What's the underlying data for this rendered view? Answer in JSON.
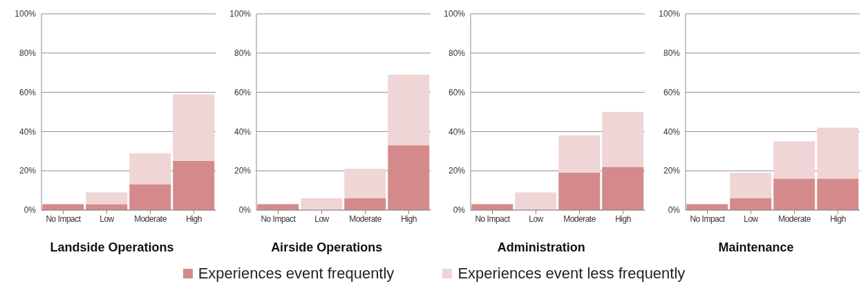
{
  "chart_data": [
    {
      "type": "bar",
      "title": "Landside Operations",
      "categories": [
        "No Impact",
        "Low",
        "Moderate",
        "High"
      ],
      "stacked": true,
      "ylim": [
        0,
        100
      ],
      "yticks": [
        {
          "value": 0,
          "label": "0%"
        },
        {
          "value": 20,
          "label": "20%"
        },
        {
          "value": 40,
          "label": "40%"
        },
        {
          "value": 60,
          "label": "60%"
        },
        {
          "value": 80,
          "label": "80%"
        },
        {
          "value": 100,
          "label": "100%"
        }
      ],
      "grid": "y",
      "legend": "bottom",
      "series": [
        {
          "name": "Experiences event frequently",
          "color": "#d48a8a",
          "values": [
            3,
            3,
            13,
            25
          ]
        },
        {
          "name": "Experiences event less frequently",
          "color": "#f0d5d6",
          "values": [
            0,
            6,
            16,
            34
          ]
        }
      ]
    },
    {
      "type": "bar",
      "title": "Airside Operations",
      "categories": [
        "No Impact",
        "Low",
        "Moderate",
        "High"
      ],
      "stacked": true,
      "ylim": [
        0,
        100
      ],
      "yticks": [
        {
          "value": 0,
          "label": "0%"
        },
        {
          "value": 20,
          "label": "20%"
        },
        {
          "value": 40,
          "label": "40%"
        },
        {
          "value": 60,
          "label": "60%"
        },
        {
          "value": 80,
          "label": "80%"
        },
        {
          "value": 100,
          "label": "100%"
        }
      ],
      "grid": "y",
      "series": [
        {
          "color": "#d48a8a",
          "values": [
            3,
            0,
            6,
            33
          ]
        },
        {
          "color": "#f0d5d6",
          "values": [
            0,
            6,
            15,
            36
          ]
        }
      ]
    },
    {
      "type": "bar",
      "title": "Administration",
      "categories": [
        "No Impact",
        "Low",
        "Moderate",
        "High"
      ],
      "stacked": true,
      "ylim": [
        0,
        100
      ],
      "yticks": [
        {
          "value": 0,
          "label": "0%"
        },
        {
          "value": 20,
          "label": "20%"
        },
        {
          "value": 40,
          "label": "40%"
        },
        {
          "value": 60,
          "label": "60%"
        },
        {
          "value": 80,
          "label": "80%"
        },
        {
          "value": 100,
          "label": "100%"
        }
      ],
      "grid": "y",
      "series": [
        {
          "color": "#d48a8a",
          "values": [
            3,
            0,
            19,
            22
          ]
        },
        {
          "color": "#f0d5d6",
          "values": [
            0,
            9,
            19,
            28
          ]
        }
      ]
    },
    {
      "type": "bar",
      "title": "Maintenance",
      "categories": [
        "No Impact",
        "Low",
        "Moderate",
        "High"
      ],
      "stacked": true,
      "ylim": [
        0,
        100
      ],
      "yticks": [
        {
          "value": 0,
          "label": "0%"
        },
        {
          "value": 20,
          "label": "20%"
        },
        {
          "value": 40,
          "label": "40%"
        },
        {
          "value": 60,
          "label": "60%"
        },
        {
          "value": 80,
          "label": "80%"
        },
        {
          "value": 100,
          "label": "100%"
        }
      ],
      "grid": "y",
      "series": [
        {
          "color": "#d48a8a",
          "values": [
            3,
            6,
            16,
            16
          ]
        },
        {
          "color": "#f0d5d6",
          "values": [
            0,
            13,
            19,
            26
          ]
        }
      ]
    }
  ]
}
